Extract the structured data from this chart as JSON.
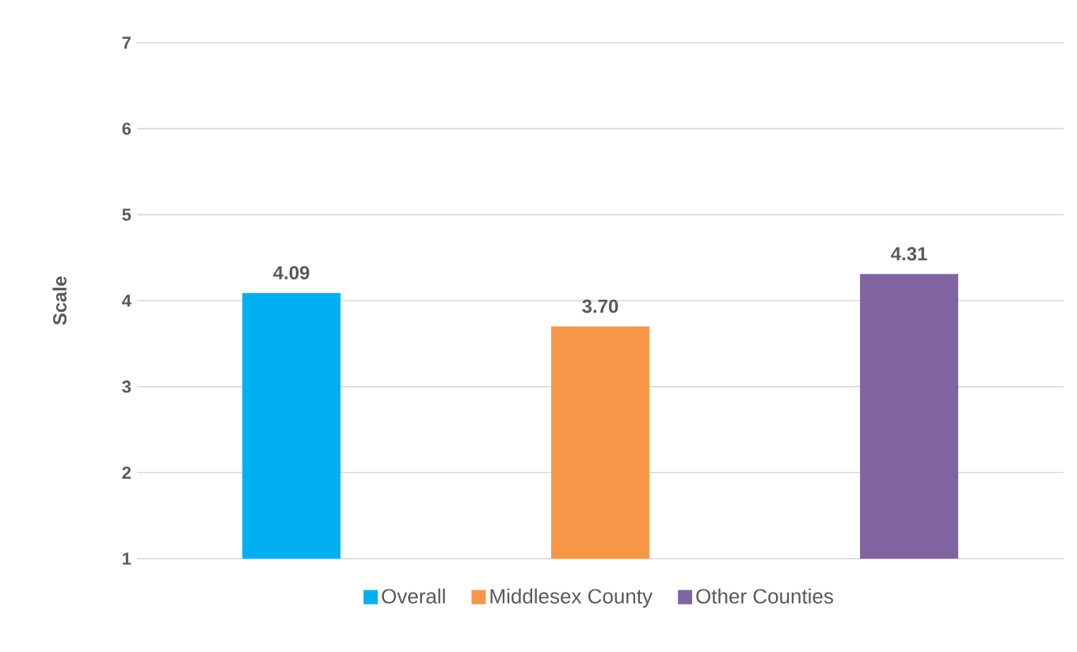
{
  "chart_data": {
    "type": "bar",
    "ylabel": "Scale",
    "categories": [
      null,
      null,
      null
    ],
    "series": [
      {
        "name": "Overall",
        "color": "#00b0f0",
        "values": [
          4.09,
          null,
          null
        ],
        "value_labels": [
          "4.09",
          null,
          null
        ]
      },
      {
        "name": "Middlesex County",
        "color": "#f79646",
        "values": [
          null,
          3.7,
          null
        ],
        "value_labels": [
          null,
          "3.70",
          null
        ]
      },
      {
        "name": "Other Counties",
        "color": "#8064a2",
        "values": [
          null,
          null,
          4.31
        ],
        "value_labels": [
          null,
          null,
          "4.31"
        ]
      }
    ],
    "ylim": [
      1,
      7
    ],
    "yticks": [
      1,
      2,
      3,
      4,
      5,
      6,
      7
    ],
    "grid": "y",
    "legend": "bottom"
  }
}
